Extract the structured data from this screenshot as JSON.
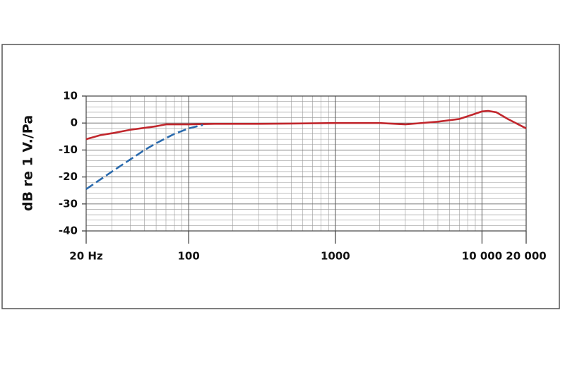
{
  "chart_data": {
    "type": "line",
    "ylabel": "dB re 1 V./Pa",
    "log_x": true,
    "grid": true,
    "xlim": [
      20,
      20000
    ],
    "ylim": [
      -40,
      10
    ],
    "xticks": [
      {
        "value": 20,
        "label": "20 Hz"
      },
      100,
      1000,
      {
        "value": 10000,
        "label": "10 000"
      },
      {
        "value": 20000,
        "label": "20 000"
      }
    ],
    "yticks": [
      10,
      0,
      -10,
      -20,
      -30,
      -40
    ],
    "series": [
      {
        "color": "#c1272d",
        "dashed": false,
        "x": [
          20,
          25,
          30,
          40,
          50,
          60,
          70,
          100,
          150,
          200,
          300,
          500,
          1000,
          2000,
          3000,
          5000,
          7000,
          8500,
          10000,
          11000,
          12500,
          15000,
          20000
        ],
        "values": [
          -6,
          -4.5,
          -3.8,
          -2.5,
          -1.8,
          -1.2,
          -0.5,
          -0.5,
          -0.3,
          -0.3,
          -0.3,
          -0.2,
          0,
          0,
          -0.5,
          0.5,
          1.5,
          3,
          4.3,
          4.5,
          4,
          1.5,
          -2
        ]
      },
      {
        "color": "#2a6aad",
        "dashed": true,
        "x": [
          20,
          30,
          40,
          50,
          60,
          80,
          100,
          125
        ],
        "values": [
          -24.5,
          -18,
          -13.5,
          -10,
          -7.5,
          -4,
          -2,
          -0.7
        ]
      }
    ]
  }
}
